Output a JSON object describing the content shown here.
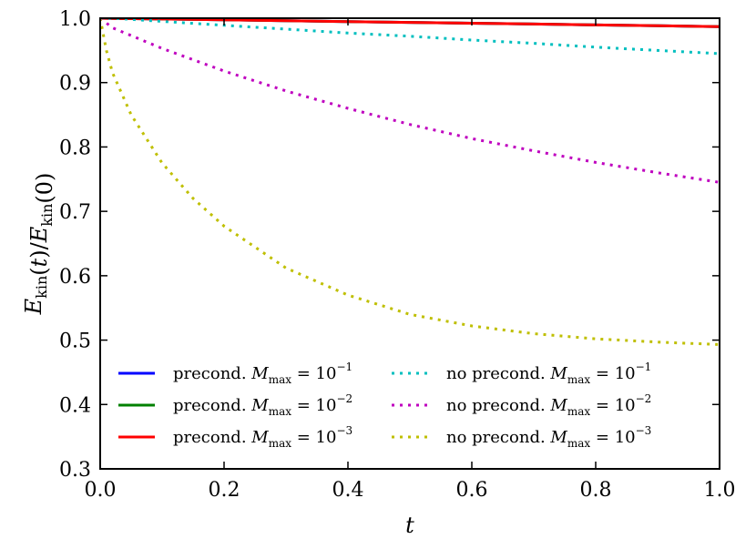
{
  "chart_data": {
    "type": "line",
    "title": "",
    "xlabel": "t",
    "ylabel": "E_kin(t)/E_kin(0)",
    "xlim": [
      0.0,
      1.0
    ],
    "ylim": [
      0.3,
      1.0
    ],
    "x_ticks": [
      "0.0",
      "0.2",
      "0.4",
      "0.6",
      "0.8",
      "1.0"
    ],
    "y_ticks": [
      "0.3",
      "0.4",
      "0.5",
      "0.6",
      "0.7",
      "0.8",
      "0.9",
      "1.0"
    ],
    "grid": false,
    "legend_position": "lower-center",
    "series": [
      {
        "name": "precond. M_max = 10^-1",
        "label_main": "precond. ",
        "label_sub": "max",
        "label_exp": "−1",
        "style": "solid",
        "color": "#0000ff",
        "x": [
          0.0,
          0.1,
          0.2,
          0.3,
          0.4,
          0.5,
          0.6,
          0.7,
          0.8,
          0.9,
          1.0
        ],
        "y": [
          1.0,
          0.9987,
          0.9974,
          0.9961,
          0.9948,
          0.9935,
          0.9922,
          0.9909,
          0.9896,
          0.9883,
          0.987
        ]
      },
      {
        "name": "precond. M_max = 10^-2",
        "label_main": "precond. ",
        "label_sub": "max",
        "label_exp": "−2",
        "style": "solid",
        "color": "#008000",
        "x": [
          0.0,
          0.1,
          0.2,
          0.3,
          0.4,
          0.5,
          0.6,
          0.7,
          0.8,
          0.9,
          1.0
        ],
        "y": [
          1.0,
          0.9987,
          0.9974,
          0.9961,
          0.9948,
          0.9935,
          0.9922,
          0.9909,
          0.9896,
          0.9883,
          0.987
        ]
      },
      {
        "name": "precond. M_max = 10^-3",
        "label_main": "precond. ",
        "label_sub": "max",
        "label_exp": "−3",
        "style": "solid",
        "color": "#ff0000",
        "x": [
          0.0,
          0.1,
          0.2,
          0.3,
          0.4,
          0.5,
          0.6,
          0.7,
          0.8,
          0.9,
          1.0
        ],
        "y": [
          1.0,
          0.9987,
          0.9974,
          0.9961,
          0.9948,
          0.9935,
          0.9922,
          0.9909,
          0.9896,
          0.9883,
          0.987
        ]
      },
      {
        "name": "no precond. M_max = 10^-1",
        "label_main": "no precond. ",
        "label_sub": "max",
        "label_exp": "−1",
        "style": "dotted",
        "color": "#00bfbf",
        "x": [
          0.0,
          0.02,
          0.1,
          0.2,
          0.3,
          0.4,
          0.5,
          0.6,
          0.7,
          0.8,
          0.9,
          1.0
        ],
        "y": [
          1.0,
          1.0,
          0.995,
          0.989,
          0.983,
          0.977,
          0.972,
          0.966,
          0.961,
          0.955,
          0.95,
          0.945
        ]
      },
      {
        "name": "no precond. M_max = 10^-2",
        "label_main": "no precond. ",
        "label_sub": "max",
        "label_exp": "−2",
        "style": "dotted",
        "color": "#bf00bf",
        "x": [
          0.0,
          0.02,
          0.1,
          0.2,
          0.3,
          0.4,
          0.5,
          0.6,
          0.7,
          0.8,
          0.9,
          1.0
        ],
        "y": [
          1.0,
          0.985,
          0.953,
          0.918,
          0.887,
          0.86,
          0.835,
          0.813,
          0.794,
          0.776,
          0.76,
          0.745
        ]
      },
      {
        "name": "no precond. M_max = 10^-3",
        "label_main": "no precond. ",
        "label_sub": "max",
        "label_exp": "−3",
        "style": "dotted",
        "color": "#bfbf00",
        "x": [
          0.0,
          0.01,
          0.02,
          0.05,
          0.1,
          0.15,
          0.2,
          0.3,
          0.4,
          0.5,
          0.6,
          0.7,
          0.8,
          0.9,
          1.0
        ],
        "y": [
          1.0,
          0.95,
          0.915,
          0.85,
          0.775,
          0.72,
          0.677,
          0.612,
          0.57,
          0.54,
          0.522,
          0.51,
          0.502,
          0.497,
          0.493
        ]
      }
    ]
  },
  "colors": {
    "axes": "#000000",
    "background": "#ffffff"
  },
  "legend": {
    "var_letter": "M",
    "base": "10"
  }
}
